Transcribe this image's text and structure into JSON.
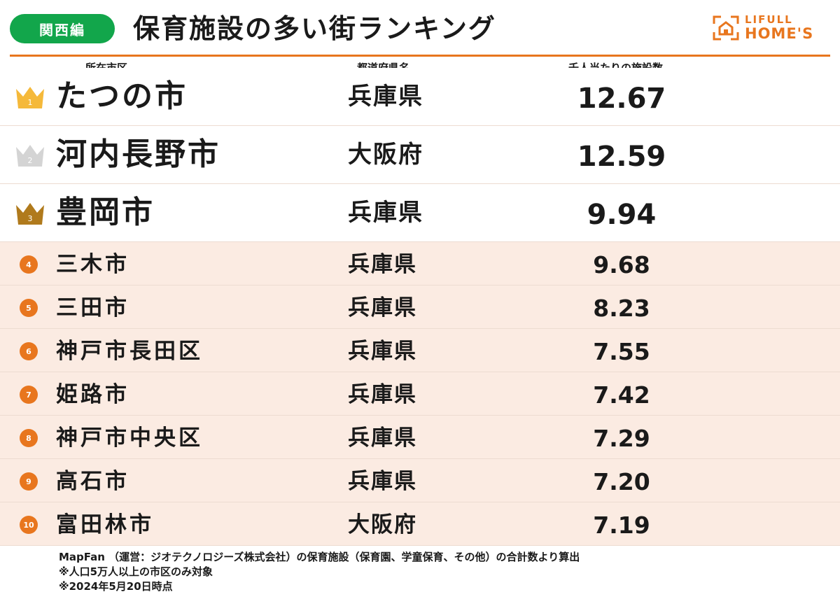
{
  "header": {
    "region_label": "関西編",
    "title": "保育施設の多い街ランキング",
    "logo_top": "LIFULL",
    "logo_bottom": "HOME'S",
    "accent_color": "#e8761e",
    "badge_color": "#12a64b"
  },
  "columns": {
    "city": "所在市区",
    "prefecture": "都道府県名",
    "value": "千人当たりの施設数"
  },
  "rows": [
    {
      "rank": "1",
      "city": "たつの市",
      "prefecture": "兵庫県",
      "value": "12.67",
      "crown": "gold-crown-icon",
      "color": "#f5b93a"
    },
    {
      "rank": "2",
      "city": "河内長野市",
      "prefecture": "大阪府",
      "value": "12.59",
      "crown": "silver-crown-icon",
      "color": "#d4d4d4"
    },
    {
      "rank": "3",
      "city": "豊岡市",
      "prefecture": "兵庫県",
      "value": "9.94",
      "crown": "bronze-crown-icon",
      "color": "#b07a1c"
    },
    {
      "rank": "4",
      "city": "三木市",
      "prefecture": "兵庫県",
      "value": "9.68"
    },
    {
      "rank": "5",
      "city": "三田市",
      "prefecture": "兵庫県",
      "value": "8.23"
    },
    {
      "rank": "6",
      "city": "神戸市長田区",
      "prefecture": "兵庫県",
      "value": "7.55"
    },
    {
      "rank": "7",
      "city": "姫路市",
      "prefecture": "兵庫県",
      "value": "7.42"
    },
    {
      "rank": "8",
      "city": "神戸市中央区",
      "prefecture": "兵庫県",
      "value": "7.29"
    },
    {
      "rank": "9",
      "city": "高石市",
      "prefecture": "兵庫県",
      "value": "7.20"
    },
    {
      "rank": "10",
      "city": "富田林市",
      "prefecture": "大阪府",
      "value": "7.19"
    }
  ],
  "notes": [
    "MapFan （運営：ジオテクノロジーズ株式会社）の保育施設（保育園、学童保育、その他）の合計数より算出",
    "※人口5万人以上の市区のみ対象",
    "※2024年5月20日時点"
  ]
}
